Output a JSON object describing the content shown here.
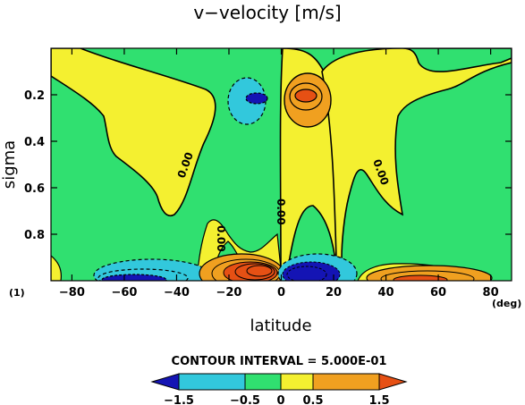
{
  "chart_data": {
    "type": "contour",
    "title": "v−velocity [m/s]",
    "xlabel": "latitude",
    "ylabel": "sigma",
    "x_unit": "(deg)",
    "panel_label": "(1)",
    "xlim": [
      -88,
      88
    ],
    "ylim": [
      1.0,
      0.0
    ],
    "x_ticks": [
      -80,
      -60,
      -40,
      -20,
      0,
      20,
      40,
      60,
      80
    ],
    "y_ticks": [
      0.2,
      0.4,
      0.6,
      0.8
    ],
    "contour_interval_label": "CONTOUR INTERVAL = 5.000E-01",
    "zero_contour_label": "0.00",
    "colorbar": {
      "levels": [
        "−1.5",
        "−0.5",
        "0",
        "0.5",
        "1.5"
      ],
      "level_values": [
        -1.5,
        -0.5,
        0,
        0.5,
        1.5
      ],
      "colors": {
        "deep_negative": "#1414b4",
        "negative": "#32c8dc",
        "near_zero_negative": "#30e070",
        "positive": "#f4f030",
        "strong_positive": "#f0a020",
        "deep_positive": "#e65014"
      }
    },
    "features": {
      "cells": [
        {
          "name": "negative minimum upper",
          "lat": -8,
          "sigma": 0.24,
          "min": -0.7
        },
        {
          "name": "positive maximum upper",
          "lat": 9,
          "sigma": 0.23,
          "max": 1.2
        },
        {
          "name": "negative near surface south",
          "lat": -45,
          "sigma": 0.97,
          "min": -2.0
        },
        {
          "name": "positive near surface south",
          "lat": -10,
          "sigma": 0.95,
          "max": 4.0
        },
        {
          "name": "negative near surface north",
          "lat": 10,
          "sigma": 0.96,
          "min": -3.0
        },
        {
          "name": "positive near surface north",
          "lat": 50,
          "sigma": 0.97,
          "max": 2.5
        }
      ]
    }
  }
}
